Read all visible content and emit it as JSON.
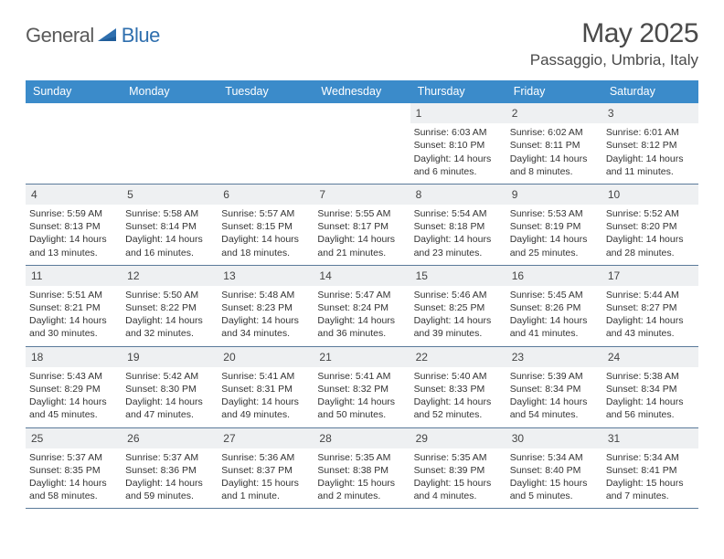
{
  "logo": {
    "general": "General",
    "blue": "Blue"
  },
  "title": "May 2025",
  "location": "Passaggio, Umbria, Italy",
  "header_bg": "#3b8bca",
  "weekdays": [
    "Sunday",
    "Monday",
    "Tuesday",
    "Wednesday",
    "Thursday",
    "Friday",
    "Saturday"
  ],
  "blank_leading": 4,
  "days": [
    {
      "n": "1",
      "sunrise": "Sunrise: 6:03 AM",
      "sunset": "Sunset: 8:10 PM",
      "daylight": "Daylight: 14 hours and 6 minutes."
    },
    {
      "n": "2",
      "sunrise": "Sunrise: 6:02 AM",
      "sunset": "Sunset: 8:11 PM",
      "daylight": "Daylight: 14 hours and 8 minutes."
    },
    {
      "n": "3",
      "sunrise": "Sunrise: 6:01 AM",
      "sunset": "Sunset: 8:12 PM",
      "daylight": "Daylight: 14 hours and 11 minutes."
    },
    {
      "n": "4",
      "sunrise": "Sunrise: 5:59 AM",
      "sunset": "Sunset: 8:13 PM",
      "daylight": "Daylight: 14 hours and 13 minutes."
    },
    {
      "n": "5",
      "sunrise": "Sunrise: 5:58 AM",
      "sunset": "Sunset: 8:14 PM",
      "daylight": "Daylight: 14 hours and 16 minutes."
    },
    {
      "n": "6",
      "sunrise": "Sunrise: 5:57 AM",
      "sunset": "Sunset: 8:15 PM",
      "daylight": "Daylight: 14 hours and 18 minutes."
    },
    {
      "n": "7",
      "sunrise": "Sunrise: 5:55 AM",
      "sunset": "Sunset: 8:17 PM",
      "daylight": "Daylight: 14 hours and 21 minutes."
    },
    {
      "n": "8",
      "sunrise": "Sunrise: 5:54 AM",
      "sunset": "Sunset: 8:18 PM",
      "daylight": "Daylight: 14 hours and 23 minutes."
    },
    {
      "n": "9",
      "sunrise": "Sunrise: 5:53 AM",
      "sunset": "Sunset: 8:19 PM",
      "daylight": "Daylight: 14 hours and 25 minutes."
    },
    {
      "n": "10",
      "sunrise": "Sunrise: 5:52 AM",
      "sunset": "Sunset: 8:20 PM",
      "daylight": "Daylight: 14 hours and 28 minutes."
    },
    {
      "n": "11",
      "sunrise": "Sunrise: 5:51 AM",
      "sunset": "Sunset: 8:21 PM",
      "daylight": "Daylight: 14 hours and 30 minutes."
    },
    {
      "n": "12",
      "sunrise": "Sunrise: 5:50 AM",
      "sunset": "Sunset: 8:22 PM",
      "daylight": "Daylight: 14 hours and 32 minutes."
    },
    {
      "n": "13",
      "sunrise": "Sunrise: 5:48 AM",
      "sunset": "Sunset: 8:23 PM",
      "daylight": "Daylight: 14 hours and 34 minutes."
    },
    {
      "n": "14",
      "sunrise": "Sunrise: 5:47 AM",
      "sunset": "Sunset: 8:24 PM",
      "daylight": "Daylight: 14 hours and 36 minutes."
    },
    {
      "n": "15",
      "sunrise": "Sunrise: 5:46 AM",
      "sunset": "Sunset: 8:25 PM",
      "daylight": "Daylight: 14 hours and 39 minutes."
    },
    {
      "n": "16",
      "sunrise": "Sunrise: 5:45 AM",
      "sunset": "Sunset: 8:26 PM",
      "daylight": "Daylight: 14 hours and 41 minutes."
    },
    {
      "n": "17",
      "sunrise": "Sunrise: 5:44 AM",
      "sunset": "Sunset: 8:27 PM",
      "daylight": "Daylight: 14 hours and 43 minutes."
    },
    {
      "n": "18",
      "sunrise": "Sunrise: 5:43 AM",
      "sunset": "Sunset: 8:29 PM",
      "daylight": "Daylight: 14 hours and 45 minutes."
    },
    {
      "n": "19",
      "sunrise": "Sunrise: 5:42 AM",
      "sunset": "Sunset: 8:30 PM",
      "daylight": "Daylight: 14 hours and 47 minutes."
    },
    {
      "n": "20",
      "sunrise": "Sunrise: 5:41 AM",
      "sunset": "Sunset: 8:31 PM",
      "daylight": "Daylight: 14 hours and 49 minutes."
    },
    {
      "n": "21",
      "sunrise": "Sunrise: 5:41 AM",
      "sunset": "Sunset: 8:32 PM",
      "daylight": "Daylight: 14 hours and 50 minutes."
    },
    {
      "n": "22",
      "sunrise": "Sunrise: 5:40 AM",
      "sunset": "Sunset: 8:33 PM",
      "daylight": "Daylight: 14 hours and 52 minutes."
    },
    {
      "n": "23",
      "sunrise": "Sunrise: 5:39 AM",
      "sunset": "Sunset: 8:34 PM",
      "daylight": "Daylight: 14 hours and 54 minutes."
    },
    {
      "n": "24",
      "sunrise": "Sunrise: 5:38 AM",
      "sunset": "Sunset: 8:34 PM",
      "daylight": "Daylight: 14 hours and 56 minutes."
    },
    {
      "n": "25",
      "sunrise": "Sunrise: 5:37 AM",
      "sunset": "Sunset: 8:35 PM",
      "daylight": "Daylight: 14 hours and 58 minutes."
    },
    {
      "n": "26",
      "sunrise": "Sunrise: 5:37 AM",
      "sunset": "Sunset: 8:36 PM",
      "daylight": "Daylight: 14 hours and 59 minutes."
    },
    {
      "n": "27",
      "sunrise": "Sunrise: 5:36 AM",
      "sunset": "Sunset: 8:37 PM",
      "daylight": "Daylight: 15 hours and 1 minute."
    },
    {
      "n": "28",
      "sunrise": "Sunrise: 5:35 AM",
      "sunset": "Sunset: 8:38 PM",
      "daylight": "Daylight: 15 hours and 2 minutes."
    },
    {
      "n": "29",
      "sunrise": "Sunrise: 5:35 AM",
      "sunset": "Sunset: 8:39 PM",
      "daylight": "Daylight: 15 hours and 4 minutes."
    },
    {
      "n": "30",
      "sunrise": "Sunrise: 5:34 AM",
      "sunset": "Sunset: 8:40 PM",
      "daylight": "Daylight: 15 hours and 5 minutes."
    },
    {
      "n": "31",
      "sunrise": "Sunrise: 5:34 AM",
      "sunset": "Sunset: 8:41 PM",
      "daylight": "Daylight: 15 hours and 7 minutes."
    }
  ]
}
